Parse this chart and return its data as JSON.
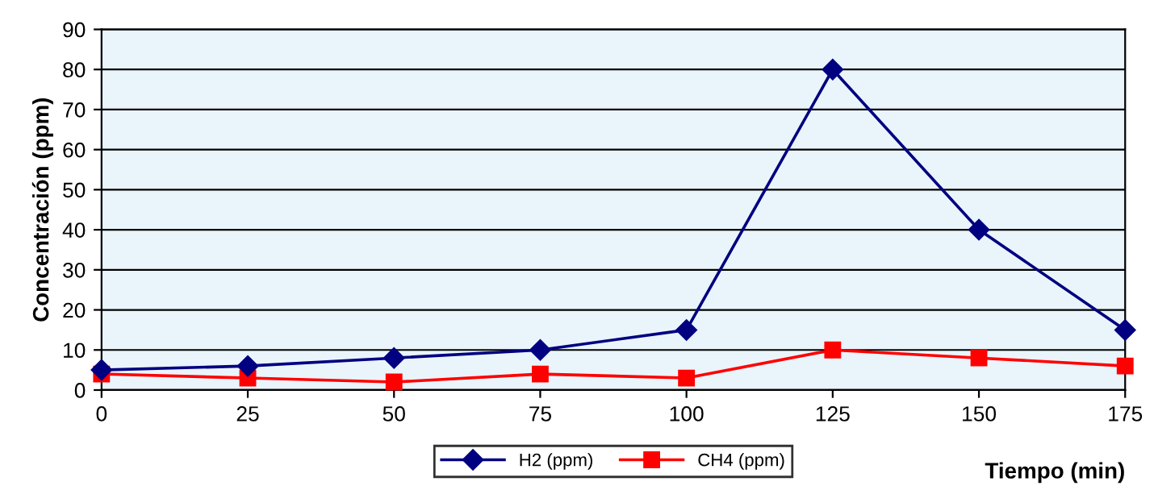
{
  "chart_data": {
    "type": "line",
    "xlabel": "Tiempo (min)",
    "ylabel": "Concentración (ppm)",
    "x": [
      0,
      25,
      50,
      75,
      100,
      125,
      150,
      175
    ],
    "series": [
      {
        "name": "H2 (ppm)",
        "color": "#000080",
        "marker": "diamond",
        "values": [
          5,
          6,
          8,
          10,
          15,
          80,
          40,
          15
        ]
      },
      {
        "name": "CH4 (ppm)",
        "color": "#ff0000",
        "marker": "square",
        "values": [
          4,
          3,
          2,
          4,
          3,
          10,
          8,
          6
        ]
      }
    ],
    "xlim": [
      0,
      175
    ],
    "xticks": [
      0,
      25,
      50,
      75,
      100,
      125,
      150,
      175
    ],
    "ylim": [
      0,
      90
    ],
    "yticks": [
      0,
      10,
      20,
      30,
      40,
      50,
      60,
      70,
      80,
      90
    ],
    "grid": "y",
    "legend": "bottom",
    "line_style": "solid"
  }
}
